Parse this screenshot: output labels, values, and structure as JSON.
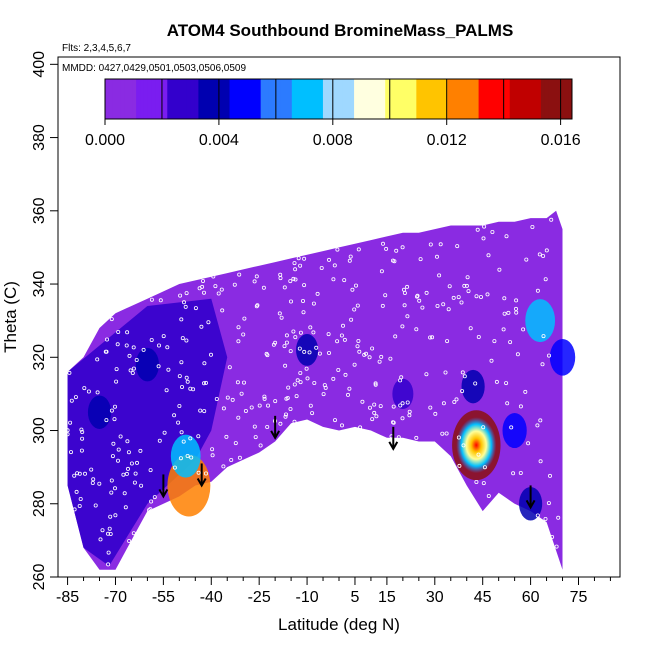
{
  "chart_data": {
    "type": "heatmap",
    "title": "ATOM4 Southbound BromineMass_PALMS",
    "flights_note": "Flts: 2,3,4,5,6,7",
    "dates_note": "MMDD: 0427,0429,0501,0503,0506,0509",
    "xlabel": "Latitude (deg N)",
    "ylabel": "Theta (C)",
    "xlim": [
      -88,
      88
    ],
    "ylim": [
      260,
      402
    ],
    "x_ticks": [
      -85,
      -70,
      -55,
      -40,
      -25,
      -10,
      5,
      15,
      30,
      45,
      60,
      75
    ],
    "x_minor_ticks": [
      -80,
      -75,
      -65,
      -60,
      -50,
      -45,
      -35,
      -30,
      -20,
      -15,
      -5,
      0,
      10,
      20,
      25,
      35,
      40,
      50,
      55,
      65,
      70,
      80,
      85
    ],
    "y_ticks": [
      260,
      280,
      300,
      320,
      340,
      360,
      380,
      400
    ],
    "colorbar": {
      "range": [
        0.0,
        0.0164
      ],
      "tick_values": [
        0.0,
        0.004,
        0.008,
        0.012,
        0.016
      ],
      "tick_labels": [
        "0.000",
        "0.004",
        "0.008",
        "0.012",
        "0.016"
      ],
      "segment_bounds": [
        0.002,
        0.004,
        0.006,
        0.008,
        0.01,
        0.012,
        0.014,
        0.016
      ],
      "colors": [
        "#8a2be2",
        "#7a1df0",
        "#3300cc",
        "#0000b0",
        "#0000ff",
        "#2c7bff",
        "#00bfff",
        "#9fd8ff",
        "#ffffe0",
        "#ffff66",
        "#ffc400",
        "#ff8000",
        "#ff0000",
        "#c00000",
        "#8b1010"
      ]
    },
    "data_top": [
      [
        -85,
        316
      ],
      [
        -80,
        320
      ],
      [
        -75,
        328
      ],
      [
        -70,
        332
      ],
      [
        -65,
        334
      ],
      [
        -60,
        336
      ],
      [
        -55,
        338
      ],
      [
        -50,
        340
      ],
      [
        -45,
        341
      ],
      [
        -40,
        342
      ],
      [
        -35,
        343
      ],
      [
        -30,
        344
      ],
      [
        -25,
        345
      ],
      [
        -20,
        346
      ],
      [
        -15,
        347
      ],
      [
        -10,
        348
      ],
      [
        -5,
        349
      ],
      [
        0,
        350
      ],
      [
        5,
        351
      ],
      [
        10,
        352
      ],
      [
        15,
        353
      ],
      [
        20,
        354
      ],
      [
        25,
        354
      ],
      [
        30,
        355
      ],
      [
        35,
        356
      ],
      [
        40,
        356
      ],
      [
        45,
        356
      ],
      [
        50,
        357
      ],
      [
        55,
        357
      ],
      [
        60,
        358
      ],
      [
        65,
        358
      ],
      [
        68,
        360
      ],
      [
        70,
        355
      ]
    ],
    "data_bottom": [
      [
        70,
        262
      ],
      [
        65,
        275
      ],
      [
        60,
        278
      ],
      [
        55,
        280
      ],
      [
        50,
        283
      ],
      [
        45,
        278
      ],
      [
        40,
        285
      ],
      [
        35,
        293
      ],
      [
        30,
        297
      ],
      [
        25,
        297
      ],
      [
        20,
        298
      ],
      [
        15,
        298
      ],
      [
        10,
        300
      ],
      [
        5,
        301
      ],
      [
        0,
        300
      ],
      [
        -5,
        301
      ],
      [
        -10,
        303
      ],
      [
        -15,
        302
      ],
      [
        -20,
        297
      ],
      [
        -25,
        294
      ],
      [
        -30,
        292
      ],
      [
        -35,
        290
      ],
      [
        -40,
        286
      ],
      [
        -45,
        285
      ],
      [
        -50,
        282
      ],
      [
        -55,
        280
      ],
      [
        -60,
        278
      ],
      [
        -65,
        270
      ],
      [
        -70,
        262
      ],
      [
        -75,
        262
      ],
      [
        -80,
        268
      ],
      [
        -85,
        285
      ]
    ],
    "hotspots": [
      {
        "lat": 43,
        "theta": 296,
        "value": 0.0155
      },
      {
        "lat": -47,
        "theta": 285,
        "value": 0.013
      },
      {
        "lat": -48,
        "theta": 293,
        "value": 0.007
      },
      {
        "lat": 63,
        "theta": 330,
        "value": 0.007
      },
      {
        "lat": 70,
        "theta": 320,
        "value": 0.005
      },
      {
        "lat": 42,
        "theta": 312,
        "value": 0.004
      },
      {
        "lat": -75,
        "theta": 305,
        "value": 0.004
      },
      {
        "lat": -60,
        "theta": 318,
        "value": 0.004
      },
      {
        "lat": -10,
        "theta": 322,
        "value": 0.0035
      },
      {
        "lat": 20,
        "theta": 310,
        "value": 0.003
      },
      {
        "lat": 55,
        "theta": 300,
        "value": 0.0045
      },
      {
        "lat": 60,
        "theta": 280,
        "value": 0.004
      }
    ],
    "arrows": [
      {
        "lat": -55,
        "theta": 282
      },
      {
        "lat": -43,
        "theta": 285
      },
      {
        "lat": -20,
        "theta": 298
      },
      {
        "lat": 17,
        "theta": 295
      },
      {
        "lat": 60,
        "theta": 279
      }
    ]
  }
}
